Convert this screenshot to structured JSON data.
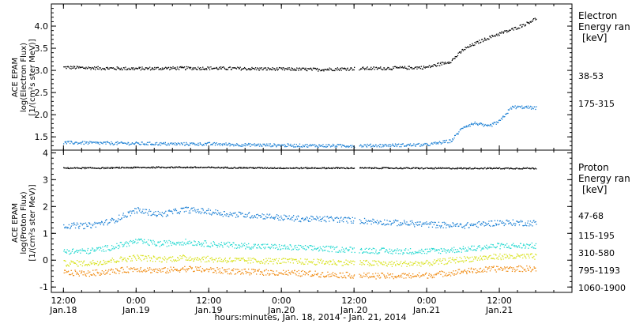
{
  "chart_data": [
    {
      "type": "scatter",
      "panel": "electron",
      "ylabel_lines": [
        "ACE EPAM",
        "log(Electron Flux)",
        "[1/(cm²s ster MeV)]"
      ],
      "yticks": [
        1.5,
        2.0,
        2.5,
        3.0,
        3.5,
        4.0
      ],
      "ytick_labels": [
        "1.5",
        "2.0",
        "2.5",
        "3.0",
        "3.5",
        "4.0"
      ],
      "ylim": [
        1.2,
        4.5
      ],
      "legend_title": [
        "Electron",
        "Energy ran",
        "[keV]"
      ],
      "legend_position": "right",
      "series": [
        {
          "name": "38-53",
          "color": "#000000",
          "x": [
            0,
            6,
            12,
            18,
            24,
            30,
            36,
            42,
            48,
            54,
            60,
            64,
            66,
            68,
            70,
            72,
            74,
            76,
            78
          ],
          "y": [
            3.08,
            3.06,
            3.05,
            3.06,
            3.06,
            3.05,
            3.04,
            3.03,
            3.05,
            3.06,
            3.08,
            3.22,
            3.48,
            3.62,
            3.74,
            3.84,
            3.93,
            4.04,
            4.18
          ]
        },
        {
          "name": "175-315",
          "color": "#1a7fd4",
          "x": [
            0,
            6,
            12,
            18,
            24,
            30,
            36,
            42,
            48,
            54,
            60,
            64,
            66,
            68,
            70,
            72,
            74,
            76,
            78
          ],
          "y": [
            1.38,
            1.37,
            1.36,
            1.35,
            1.35,
            1.33,
            1.32,
            1.31,
            1.31,
            1.32,
            1.33,
            1.42,
            1.74,
            1.82,
            1.74,
            1.86,
            2.18,
            2.18,
            2.16
          ]
        }
      ]
    },
    {
      "type": "scatter",
      "panel": "proton",
      "ylabel_lines": [
        "ACE EPAM",
        "log(Proton Flux)",
        "[1/(cm²s ster MeV)]"
      ],
      "yticks": [
        -1,
        0,
        1,
        2,
        3,
        4
      ],
      "ytick_labels": [
        "-1",
        "0",
        "1",
        "2",
        "3",
        "4"
      ],
      "ylim": [
        -1.2,
        4.1
      ],
      "legend_title": [
        "Proton",
        "Energy ran",
        "[keV]"
      ],
      "legend_position": "right",
      "series": [
        {
          "name": "47-68",
          "color": "#000000",
          "x": [
            0,
            6,
            12,
            18,
            24,
            30,
            36,
            42,
            48,
            54,
            60,
            66,
            72,
            78
          ],
          "y": [
            3.45,
            3.45,
            3.47,
            3.48,
            3.47,
            3.46,
            3.45,
            3.45,
            3.45,
            3.45,
            3.44,
            3.44,
            3.44,
            3.44
          ]
        },
        {
          "name": "115-195",
          "color": "#1a7fd4",
          "x": [
            0,
            4,
            8,
            12,
            16,
            20,
            24,
            28,
            32,
            36,
            40,
            44,
            48,
            54,
            60,
            66,
            72,
            78
          ],
          "y": [
            1.3,
            1.3,
            1.48,
            1.88,
            1.72,
            1.9,
            1.82,
            1.72,
            1.68,
            1.6,
            1.55,
            1.55,
            1.5,
            1.42,
            1.35,
            1.3,
            1.42,
            1.4
          ]
        },
        {
          "name": "310-580",
          "color": "#22d8d0",
          "x": [
            0,
            4,
            8,
            12,
            16,
            20,
            24,
            30,
            36,
            42,
            48,
            54,
            60,
            66,
            72,
            78
          ],
          "y": [
            0.35,
            0.35,
            0.5,
            0.72,
            0.62,
            0.7,
            0.62,
            0.55,
            0.5,
            0.45,
            0.4,
            0.35,
            0.35,
            0.42,
            0.55,
            0.55
          ]
        },
        {
          "name": "795-1193",
          "color": "#d8e21c",
          "x": [
            0,
            4,
            8,
            12,
            16,
            20,
            24,
            30,
            36,
            42,
            48,
            54,
            60,
            66,
            72,
            78
          ],
          "y": [
            -0.1,
            -0.1,
            0.0,
            0.12,
            0.05,
            0.1,
            0.05,
            0.0,
            -0.02,
            -0.05,
            -0.08,
            -0.12,
            -0.1,
            0.05,
            0.15,
            0.15
          ]
        },
        {
          "name": "1060-1900",
          "color": "#f08a10",
          "x": [
            0,
            4,
            8,
            12,
            16,
            20,
            24,
            30,
            36,
            42,
            48,
            54,
            60,
            66,
            72,
            78
          ],
          "y": [
            -0.45,
            -0.48,
            -0.4,
            -0.3,
            -0.38,
            -0.3,
            -0.35,
            -0.42,
            -0.45,
            -0.5,
            -0.55,
            -0.58,
            -0.55,
            -0.4,
            -0.3,
            -0.3
          ]
        }
      ]
    }
  ],
  "x_axis": {
    "range_hours": [
      -2,
      84
    ],
    "gap_hours": [
      48.0,
      48.8
    ],
    "ticks": [
      {
        "h": 0,
        "time": "12:00",
        "date": "Jan.18"
      },
      {
        "h": 12,
        "time": "0:00",
        "date": "Jan.19"
      },
      {
        "h": 24,
        "time": "12:00",
        "date": "Jan.19"
      },
      {
        "h": 36,
        "time": "0:00",
        "date": "Jan.20"
      },
      {
        "h": 48,
        "time": "12:00",
        "date": "Jan.20"
      },
      {
        "h": 60,
        "time": "0:00",
        "date": "Jan.21"
      },
      {
        "h": 72,
        "time": "12:00",
        "date": "Jan.21"
      }
    ],
    "xlabel": "hours:minutes, Jan. 18, 2014 - Jan. 21, 2014"
  }
}
